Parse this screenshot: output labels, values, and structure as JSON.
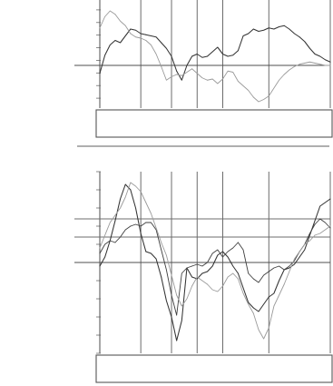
{
  "captions": {
    "upper_note": "",
    "main": "",
    "sub": ""
  },
  "chart_data": [
    {
      "type": "line",
      "title": "",
      "xlabel": "",
      "ylabel": "",
      "ylim": [
        -4,
        6
      ],
      "yticks": [
        "",
        "",
        "",
        "",
        "",
        "",
        "",
        "",
        "",
        ""
      ],
      "xticks": [],
      "grid": true,
      "series": [
        {
          "color": "#333333",
          "line_style": "solid",
          "values": [
            -0.7,
            0.9,
            1.8,
            2.2,
            2.0,
            2.6,
            3.2,
            3.1,
            2.8,
            2.7,
            2.6,
            2.5,
            2.0,
            1.5,
            0.8,
            -0.5,
            -1.3,
            0.0,
            0.8,
            1.0,
            0.7,
            0.8,
            1.2,
            1.6,
            1.0,
            0.8,
            0.9,
            1.3,
            2.6,
            2.8,
            3.2,
            3.0,
            3.1,
            3.3,
            3.2,
            3.4,
            3.5,
            3.2,
            2.8,
            2.5,
            2.1,
            1.5,
            1.0,
            0.8,
            0.5,
            0.3
          ]
        },
        {
          "color": "#9a9a9a",
          "line_style": "solid",
          "values": [
            3.3,
            4.3,
            4.8,
            4.5,
            3.9,
            3.5,
            2.8,
            2.5,
            2.4,
            2.2,
            1.8,
            1.0,
            -0.1,
            -1.3,
            -1.0,
            -0.8,
            -0.9,
            -0.6,
            -0.3,
            -0.7,
            -1.1,
            -1.3,
            -1.2,
            -1.6,
            -1.2,
            -0.5,
            -0.6,
            -1.4,
            -1.8,
            -2.2,
            -2.8,
            -3.2,
            -3.0,
            -2.7,
            -2.0,
            -1.3,
            -0.8,
            -0.4,
            -0.1,
            0.1,
            0.2,
            0.3,
            0.2,
            0.1,
            0.0,
            0.0
          ]
        }
      ],
      "x_count": 46
    },
    {
      "type": "line",
      "title": "",
      "xlabel": "",
      "ylabel": "",
      "ylim": [
        -5,
        5
      ],
      "yticks": [
        "",
        "",
        "",
        "",
        "",
        "",
        "",
        "",
        "",
        "",
        ""
      ],
      "xticks": [],
      "grid": true,
      "series": [
        {
          "color": "#333333",
          "line_style": "solid",
          "values": [
            -0.2,
            0.3,
            1.2,
            2.3,
            3.5,
            4.3,
            4.0,
            3.0,
            1.6,
            0.6,
            0.5,
            0.2,
            -0.8,
            -2.1,
            -3.0,
            -4.3,
            -3.2,
            -0.3,
            -0.8,
            -0.9,
            -0.6,
            -0.5,
            -0.2,
            0.4,
            0.6,
            0.3,
            -0.2,
            -0.6,
            -1.4,
            -2.2,
            -2.5,
            -2.7,
            -2.3,
            -1.9,
            -1.7,
            -1.0,
            -0.4,
            -0.3,
            -0.1,
            0.3,
            0.7,
            1.5,
            2.3,
            3.1,
            3.3,
            3.5
          ]
        },
        {
          "color": "#3e3e3e",
          "line_style": "solid",
          "values": [
            0.5,
            1.0,
            1.2,
            1.1,
            1.4,
            1.8,
            2.0,
            2.1,
            2.0,
            2.2,
            2.2,
            1.8,
            0.7,
            -0.4,
            -1.8,
            -2.9,
            -0.6,
            -0.3,
            -0.2,
            -0.1,
            -0.2,
            0.0,
            0.5,
            0.7,
            0.3,
            0.6,
            0.8,
            1.1,
            0.7,
            -0.6,
            -0.9,
            -1.1,
            -0.7,
            -0.5,
            -0.3,
            -0.2,
            -0.4,
            -0.2,
            0.1,
            0.6,
            1.0,
            1.6,
            2.1,
            2.4,
            2.2,
            1.9
          ]
        },
        {
          "color": "#9a9a9a",
          "line_style": "solid",
          "values": [
            0.8,
            1.5,
            2.2,
            2.6,
            3.0,
            3.6,
            4.4,
            4.2,
            3.9,
            3.3,
            2.7,
            1.9,
            1.1,
            0.4,
            -0.7,
            -1.8,
            -2.4,
            -2.0,
            -1.3,
            -0.8,
            -1.0,
            -1.2,
            -1.5,
            -1.6,
            -1.3,
            -0.8,
            -0.6,
            -0.9,
            -1.7,
            -2.3,
            -2.8,
            -3.7,
            -4.2,
            -3.6,
            -2.4,
            -1.8,
            -1.2,
            -0.5,
            0.2,
            0.6,
            1.0,
            1.2,
            1.5,
            1.6,
            1.8,
            2.0
          ]
        }
      ],
      "x_count": 46
    }
  ]
}
